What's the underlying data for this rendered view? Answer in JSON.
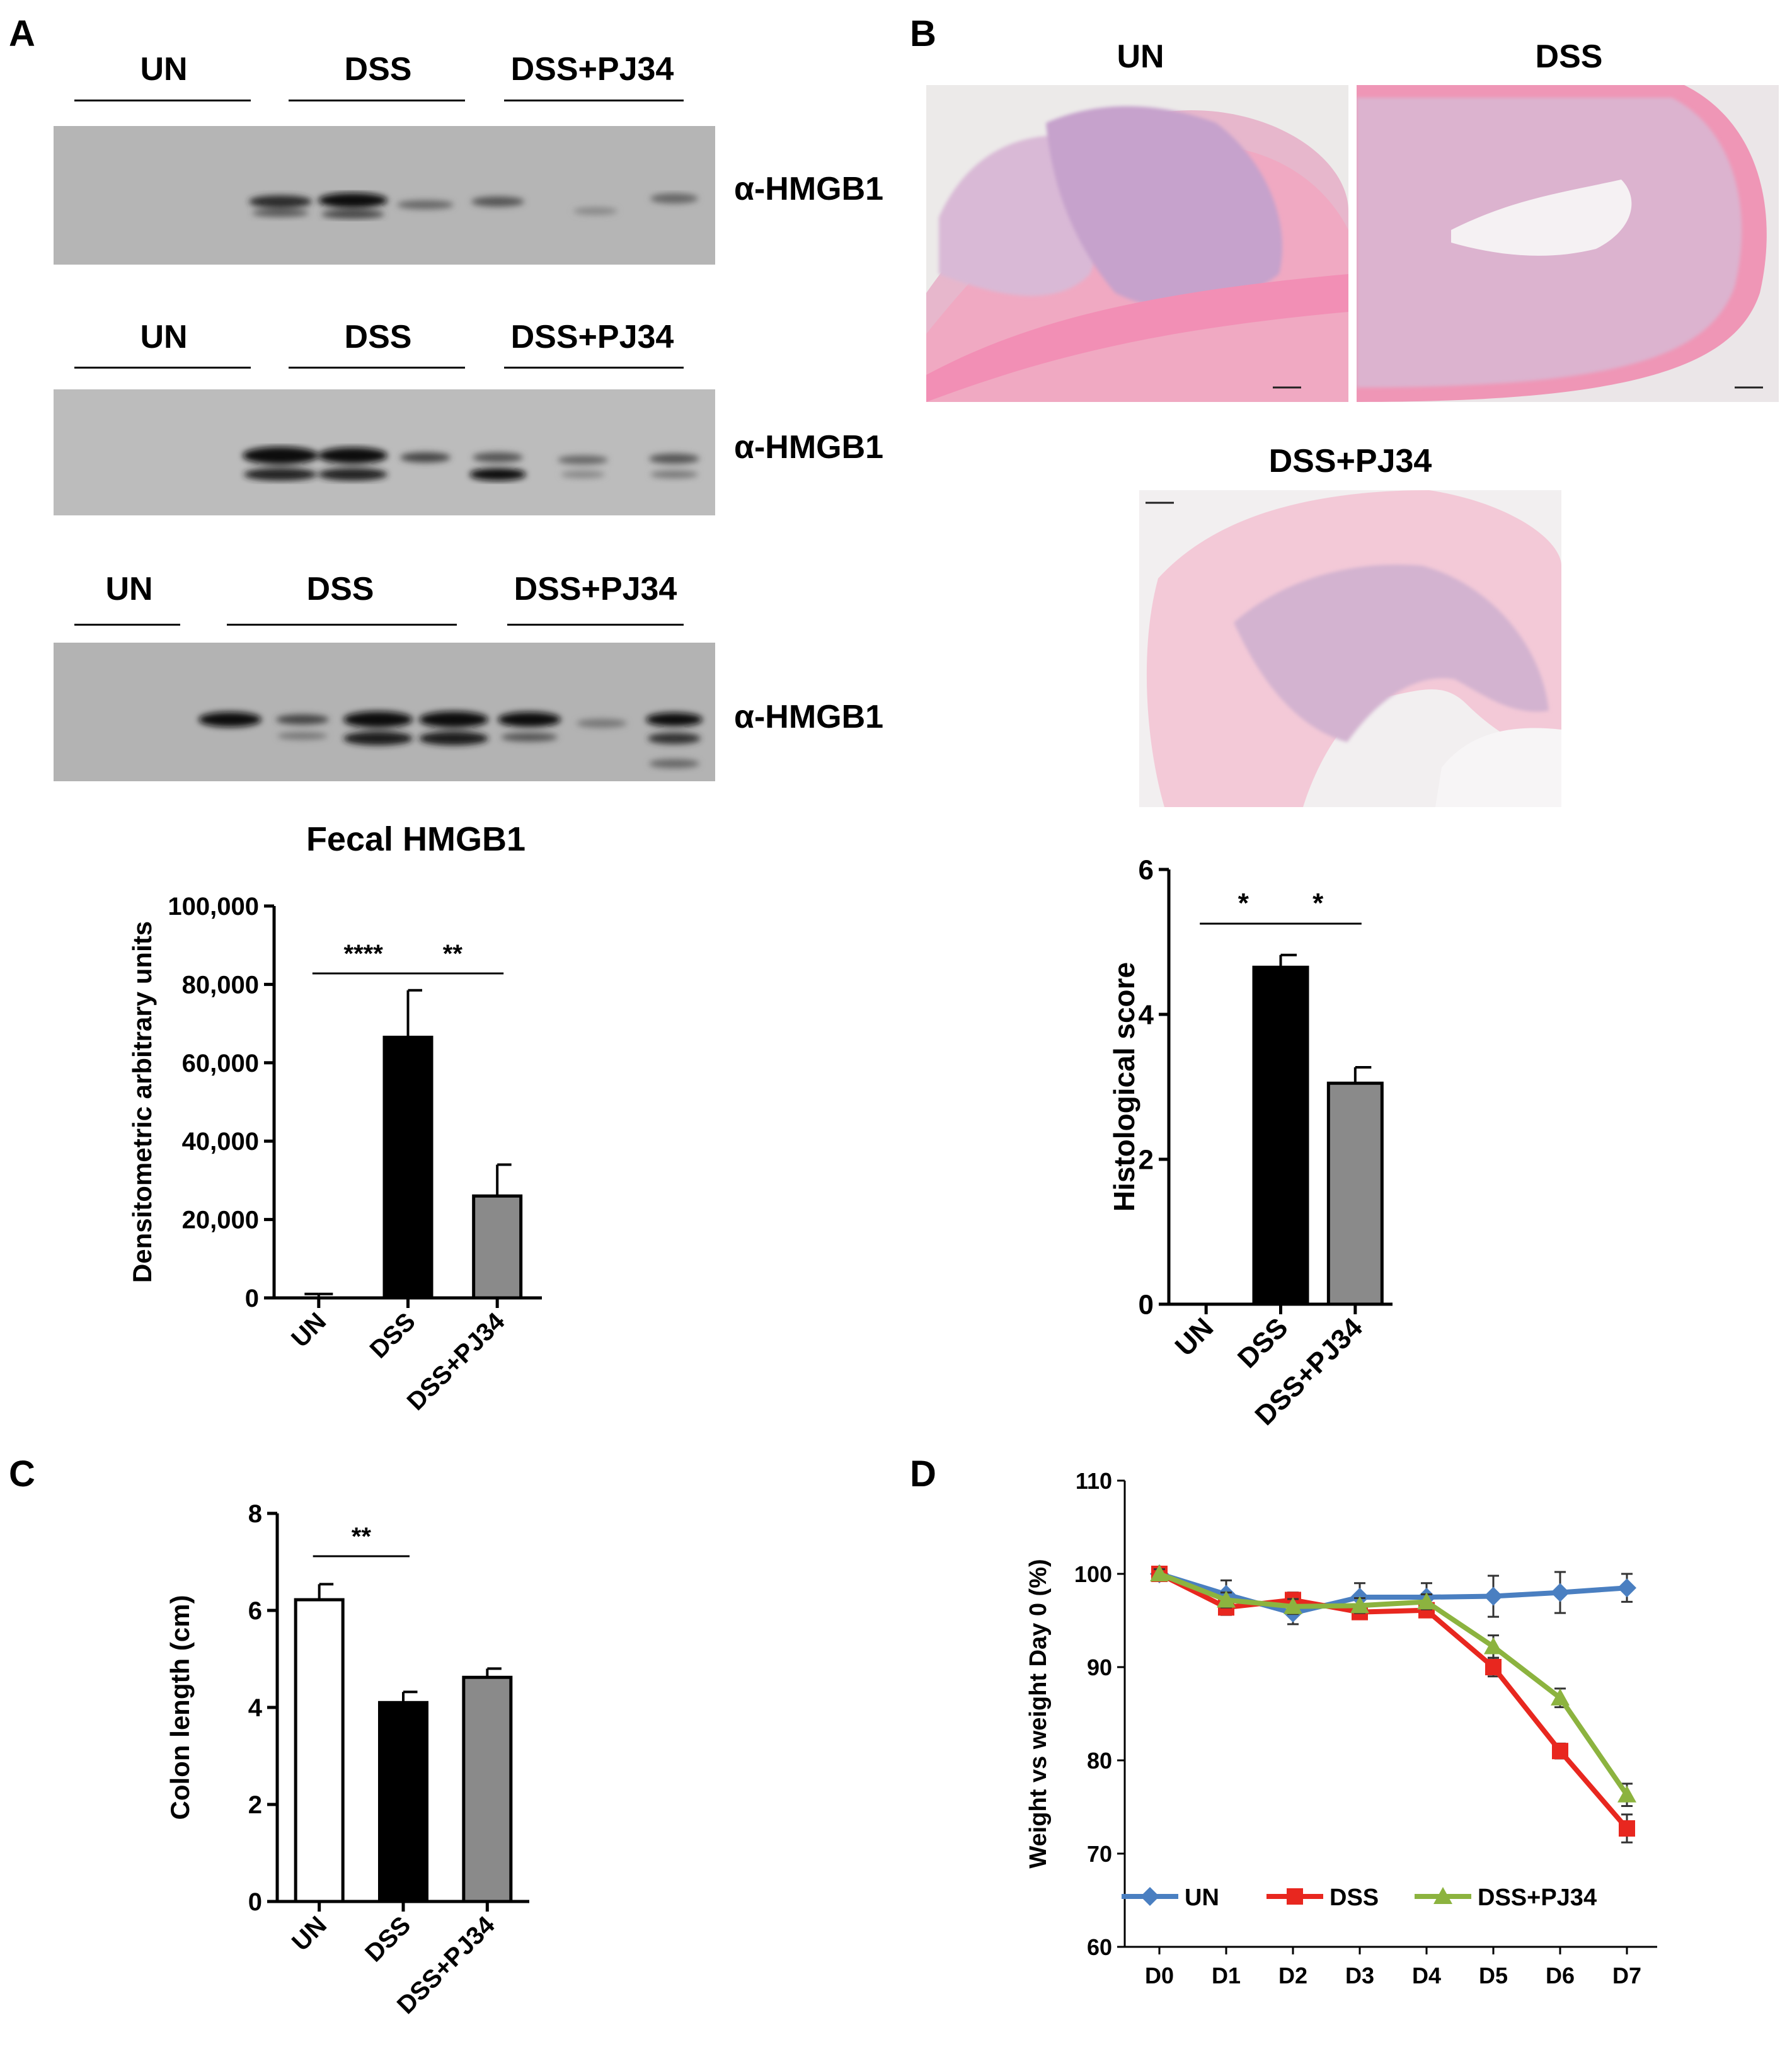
{
  "panels": {
    "A": "A",
    "B": "B",
    "C": "C",
    "D": "D"
  },
  "blots": {
    "antibody": "α-HMGB1",
    "groups": [
      "UN",
      "DSS",
      "DSS+PJ34"
    ]
  },
  "histology": {
    "labels": [
      "UN",
      "DSS",
      "DSS+PJ34"
    ]
  },
  "chart_data": [
    {
      "id": "fecal",
      "type": "bar",
      "title": "Fecal HMGB1",
      "ylabel": "Densitometric arbitrary units",
      "categories": [
        "UN",
        "DSS",
        "DSS+PJ34"
      ],
      "values": [
        0,
        66500,
        26000
      ],
      "errors": [
        1000,
        12000,
        8000
      ],
      "bar_colors": [
        "#000000",
        "#000000",
        "#8a8a8a"
      ],
      "ylim": [
        0,
        100000
      ],
      "yticks": [
        "0",
        "20,000",
        "40,000",
        "60,000",
        "80,000",
        "100,000"
      ],
      "significance": [
        {
          "pair": [
            0,
            1
          ],
          "label": "****"
        },
        {
          "pair": [
            1,
            2
          ],
          "label": "**"
        }
      ]
    },
    {
      "id": "histo",
      "type": "bar",
      "title": "",
      "ylabel": "Histological score",
      "categories": [
        "UN",
        "DSS",
        "DSS+PJ34"
      ],
      "values": [
        0,
        4.65,
        3.05
      ],
      "errors": [
        0,
        0.17,
        0.22
      ],
      "bar_colors": [
        "#000000",
        "#000000",
        "#8a8a8a"
      ],
      "ylim": [
        0,
        6
      ],
      "yticks": [
        "0",
        "2",
        "4",
        "6"
      ],
      "significance": [
        {
          "pair": [
            0,
            1
          ],
          "label": "*"
        },
        {
          "pair": [
            1,
            2
          ],
          "label": "*"
        }
      ]
    },
    {
      "id": "colon",
      "type": "bar",
      "title": "",
      "ylabel": "Colon length (cm)",
      "categories": [
        "UN",
        "DSS",
        "DSS+PJ34"
      ],
      "values": [
        6.22,
        4.1,
        4.62
      ],
      "errors": [
        0.32,
        0.22,
        0.18
      ],
      "bar_colors": [
        "#ffffff",
        "#000000",
        "#8a8a8a"
      ],
      "ylim": [
        0,
        8
      ],
      "yticks": [
        "0",
        "2",
        "4",
        "6",
        "8"
      ],
      "significance": [
        {
          "pair": [
            0,
            1
          ],
          "label": "**"
        }
      ]
    },
    {
      "id": "weight",
      "type": "line",
      "title": "",
      "ylabel": "Weight vs weight Day 0 (%)",
      "categories": [
        "D0",
        "D1",
        "D2",
        "D3",
        "D4",
        "D5",
        "D6",
        "D7"
      ],
      "ylim": [
        60,
        110
      ],
      "yticks": [
        "60",
        "70",
        "80",
        "90",
        "100",
        "110"
      ],
      "legend_position": "bottom",
      "series": [
        {
          "name": "UN",
          "color": "#4a7fc1",
          "marker": "diamond",
          "values": [
            100,
            97.8,
            95.8,
            97.5,
            97.5,
            97.6,
            98,
            98.5
          ],
          "errors": [
            0.5,
            1.5,
            1.2,
            1.5,
            1.5,
            2.2,
            2.2,
            1.5
          ]
        },
        {
          "name": "DSS",
          "color": "#e8271f",
          "marker": "square",
          "values": [
            100,
            96.4,
            97.2,
            95.9,
            96.1,
            90,
            81,
            72.7
          ],
          "errors": [
            0.5,
            0.8,
            0.8,
            0.6,
            0.6,
            1.0,
            0.8,
            1.5
          ]
        },
        {
          "name": "DSS+PJ34",
          "color": "#8cb33f",
          "marker": "triangle",
          "values": [
            100,
            97.2,
            96.5,
            96.6,
            97,
            92.2,
            86.7,
            76.3
          ],
          "errors": [
            0.5,
            0.8,
            0.8,
            0.8,
            0.8,
            1.2,
            1.0,
            1.2
          ]
        }
      ]
    }
  ]
}
